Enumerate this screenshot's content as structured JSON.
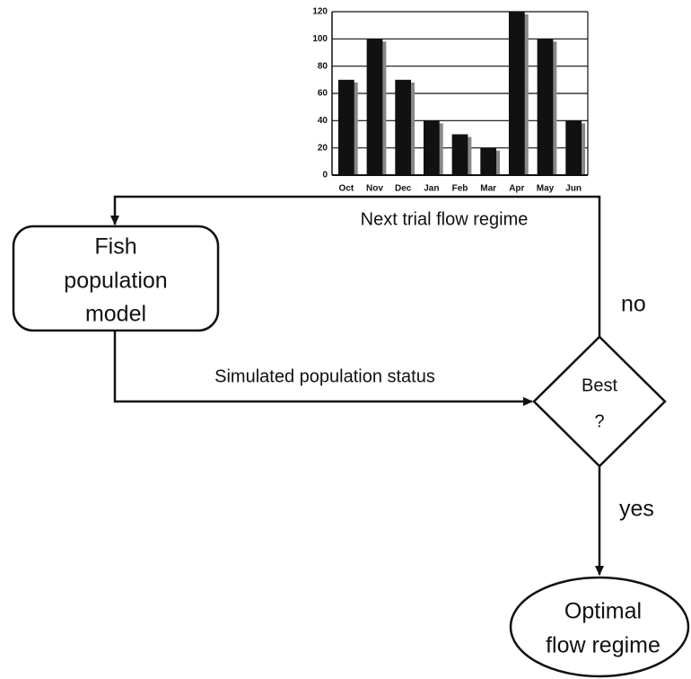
{
  "chart_data": {
    "type": "bar",
    "categories": [
      "Oct",
      "Nov",
      "Dec",
      "Jan",
      "Feb",
      "Mar",
      "Apr",
      "May",
      "Jun"
    ],
    "values": [
      70,
      100,
      70,
      40,
      30,
      20,
      120,
      100,
      40
    ],
    "color": "#111111",
    "ylim": [
      0,
      120
    ],
    "yticks": [
      0,
      20,
      40,
      60,
      80,
      100,
      120
    ],
    "grid": true
  },
  "nodes": [
    {
      "lines": [
        "Fish",
        "population",
        "model"
      ]
    },
    {
      "lines": [
        "Best",
        "?"
      ]
    },
    {
      "lines": [
        "Optimal",
        "flow regime"
      ]
    }
  ],
  "edges": [
    {
      "label": "Next trial flow regime"
    },
    {
      "label": "Simulated population status"
    },
    {
      "label": "no"
    },
    {
      "label": "yes"
    }
  ]
}
